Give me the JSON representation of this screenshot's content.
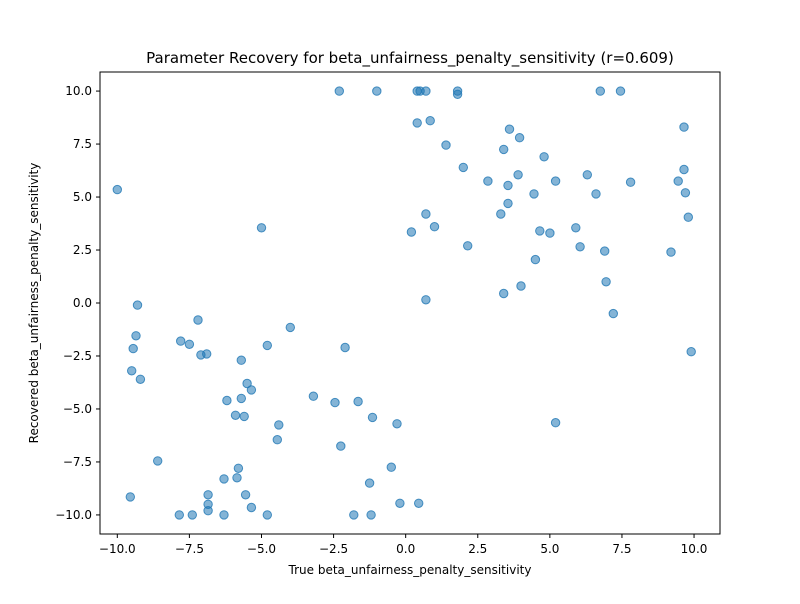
{
  "chart_data": {
    "type": "scatter",
    "title": "Parameter Recovery for beta_unfairness_penalty_sensitivity (r=0.609)",
    "xlabel": "True beta_unfairness_penalty_sensitivity",
    "ylabel": "Recovered beta_unfairness_penalty_sensitivity",
    "xlim": [
      -10.6,
      10.9
    ],
    "ylim": [
      -10.9,
      10.9
    ],
    "xticks": [
      -10.0,
      -7.5,
      -5.0,
      -2.5,
      0.0,
      2.5,
      5.0,
      7.5,
      10.0
    ],
    "yticks": [
      -10.0,
      -7.5,
      -5.0,
      -2.5,
      0.0,
      2.5,
      5.0,
      7.5,
      10.0
    ],
    "xtick_labels": [
      "−10.0",
      "−7.5",
      "−5.0",
      "−2.5",
      "0.0",
      "2.5",
      "5.0",
      "7.5",
      "10.0"
    ],
    "ytick_labels": [
      "−10.0",
      "−7.5",
      "−5.0",
      "−2.5",
      "0.0",
      "2.5",
      "5.0",
      "7.5",
      "10.0"
    ],
    "grid": false,
    "legend": false,
    "marker_color": "#1f77b4",
    "marker_alpha": 0.55,
    "points": [
      [
        -2.3,
        10.0
      ],
      [
        -1.0,
        10.0
      ],
      [
        0.4,
        10.0
      ],
      [
        0.5,
        10.0
      ],
      [
        0.7,
        10.0
      ],
      [
        1.8,
        10.0
      ],
      [
        1.8,
        9.85
      ],
      [
        6.75,
        10.0
      ],
      [
        7.45,
        10.0
      ],
      [
        0.4,
        8.5
      ],
      [
        0.85,
        8.6
      ],
      [
        3.6,
        8.2
      ],
      [
        9.65,
        8.3
      ],
      [
        1.4,
        7.45
      ],
      [
        3.95,
        7.8
      ],
      [
        3.4,
        7.25
      ],
      [
        4.8,
        6.9
      ],
      [
        2.0,
        6.4
      ],
      [
        6.3,
        6.05
      ],
      [
        3.9,
        6.05
      ],
      [
        9.65,
        6.3
      ],
      [
        2.85,
        5.75
      ],
      [
        3.55,
        5.55
      ],
      [
        5.2,
        5.75
      ],
      [
        7.8,
        5.7
      ],
      [
        9.45,
        5.75
      ],
      [
        9.7,
        5.2
      ],
      [
        4.45,
        5.15
      ],
      [
        6.6,
        5.15
      ],
      [
        3.55,
        4.7
      ],
      [
        0.7,
        4.2
      ],
      [
        3.3,
        4.2
      ],
      [
        9.8,
        4.05
      ],
      [
        1.0,
        3.6
      ],
      [
        0.2,
        3.35
      ],
      [
        4.65,
        3.4
      ],
      [
        5.0,
        3.3
      ],
      [
        5.9,
        3.55
      ],
      [
        2.15,
        2.7
      ],
      [
        6.05,
        2.65
      ],
      [
        4.5,
        2.05
      ],
      [
        6.9,
        2.45
      ],
      [
        9.2,
        2.4
      ],
      [
        4.0,
        0.8
      ],
      [
        6.95,
        1.0
      ],
      [
        3.4,
        0.45
      ],
      [
        0.7,
        0.15
      ],
      [
        7.2,
        -0.5
      ],
      [
        9.9,
        -2.3
      ],
      [
        5.2,
        -5.65
      ],
      [
        -10.0,
        5.35
      ],
      [
        -5.0,
        3.55
      ],
      [
        -9.3,
        -0.1
      ],
      [
        -9.35,
        -1.55
      ],
      [
        -9.45,
        -2.15
      ],
      [
        -7.2,
        -0.8
      ],
      [
        -4.0,
        -1.15
      ],
      [
        -7.8,
        -1.8
      ],
      [
        -7.5,
        -1.95
      ],
      [
        -7.1,
        -2.45
      ],
      [
        -6.9,
        -2.4
      ],
      [
        -4.8,
        -2.0
      ],
      [
        -2.1,
        -2.1
      ],
      [
        -5.7,
        -2.7
      ],
      [
        -9.5,
        -3.2
      ],
      [
        -9.2,
        -3.6
      ],
      [
        -5.5,
        -3.8
      ],
      [
        -5.35,
        -4.1
      ],
      [
        -3.2,
        -4.4
      ],
      [
        -6.2,
        -4.6
      ],
      [
        -5.7,
        -4.5
      ],
      [
        -2.45,
        -4.7
      ],
      [
        -1.65,
        -4.65
      ],
      [
        -5.9,
        -5.3
      ],
      [
        -5.6,
        -5.35
      ],
      [
        -1.15,
        -5.4
      ],
      [
        -4.4,
        -5.75
      ],
      [
        -0.3,
        -5.7
      ],
      [
        -4.45,
        -6.45
      ],
      [
        -2.25,
        -6.75
      ],
      [
        -8.6,
        -7.45
      ],
      [
        -5.8,
        -7.8
      ],
      [
        -0.5,
        -7.75
      ],
      [
        -6.3,
        -8.3
      ],
      [
        -5.85,
        -8.25
      ],
      [
        -1.25,
        -8.5
      ],
      [
        -6.85,
        -9.05
      ],
      [
        -5.55,
        -9.05
      ],
      [
        -9.55,
        -9.15
      ],
      [
        -6.85,
        -9.5
      ],
      [
        -5.35,
        -9.65
      ],
      [
        -6.85,
        -9.8
      ],
      [
        -0.2,
        -9.45
      ],
      [
        0.45,
        -9.45
      ],
      [
        -7.85,
        -10.0
      ],
      [
        -7.4,
        -10.0
      ],
      [
        -6.3,
        -10.0
      ],
      [
        -4.8,
        -10.0
      ],
      [
        -1.8,
        -10.0
      ],
      [
        -1.2,
        -10.0
      ]
    ]
  }
}
